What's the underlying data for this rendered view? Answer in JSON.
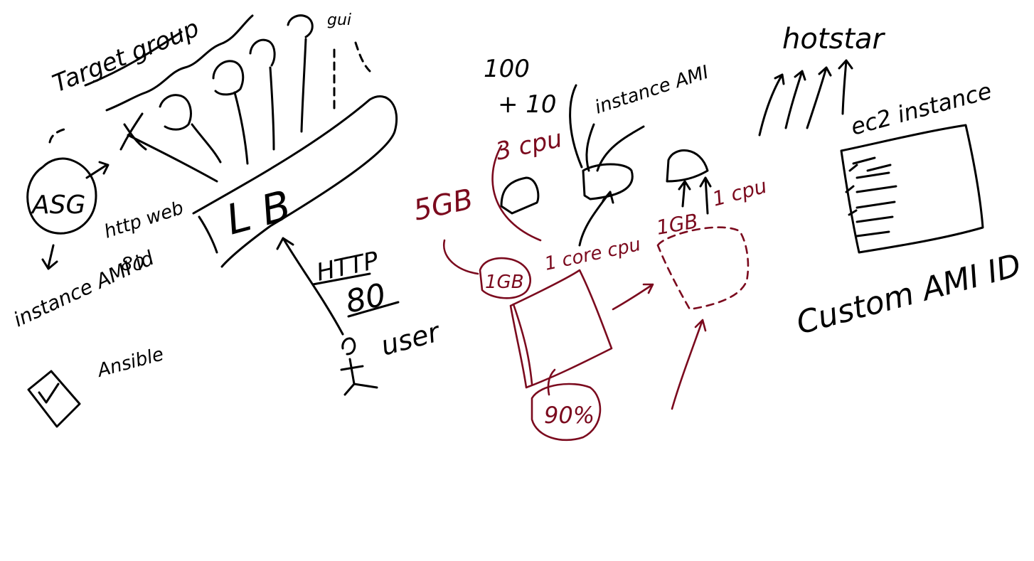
{
  "colors": {
    "ink": "#000000",
    "accent": "#7b0a1e",
    "background": "#ffffff"
  },
  "labels": {
    "target_group": "Target group",
    "asg": "ASG",
    "http_web": "http web",
    "port_80_left": "80",
    "instance_ami_left": "instance AMI id",
    "ansible": "Ansible",
    "lb": "L B",
    "http": "HTTP",
    "port_80": "80",
    "user": "user",
    "gui": "gui",
    "count_100": "100",
    "plus_10": "+ 10",
    "instance_ami": "instance AMI",
    "size_5gb": "5GB",
    "cpu_3": "3 cpu",
    "mem_1gb": "1GB",
    "cpu_1core": "1 core cpu",
    "usage_90": "90%",
    "mem_1gb_right": "1GB",
    "cpu_1_right": "1 cpu",
    "hotstar": "hotstar",
    "ec2_instance": "ec2 instance",
    "custom_ami": "Custom AMI ID"
  }
}
